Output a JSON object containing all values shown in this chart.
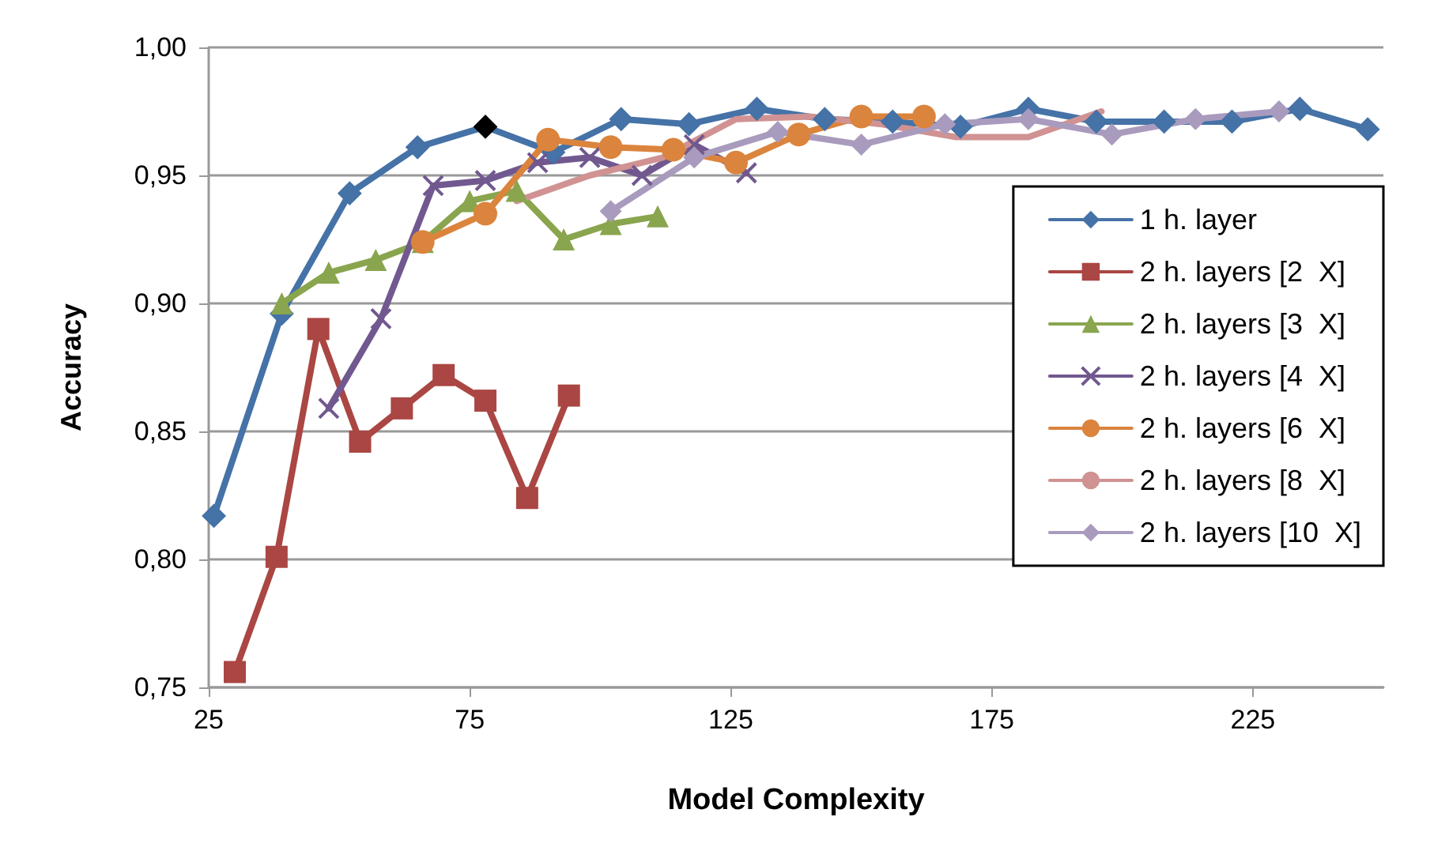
{
  "chart_data": {
    "type": "line",
    "xlabel": "Model Complexity",
    "ylabel": "Accuracy",
    "xlim": [
      25,
      250
    ],
    "xticks": [
      25,
      75,
      125,
      175,
      225
    ],
    "ylim": [
      0.75,
      1.0
    ],
    "yticks": [
      {
        "value": 0.75,
        "label": "0,75"
      },
      {
        "value": 0.8,
        "label": "0,80"
      },
      {
        "value": 0.85,
        "label": "0,85"
      },
      {
        "value": 0.9,
        "label": "0,90"
      },
      {
        "value": 0.95,
        "label": "0,95"
      },
      {
        "value": 1.0,
        "label": "1,00"
      }
    ],
    "grid": "y",
    "legend": "right",
    "series": [
      {
        "name": "1 h. layer",
        "color": "#4572a7",
        "marker": "diamond",
        "colors": [
          "#4572a7",
          "#4572a7",
          "#4572a7",
          "#4572a7",
          "#000000",
          "#4572a7",
          "#4572a7",
          "#4572a7",
          "#4572a7",
          "#4572a7",
          "#4572a7",
          "#4572a7",
          "#4572a7",
          "#4572a7",
          "#4572a7",
          "#4572a7",
          "#4572a7",
          "#4572a7"
        ],
        "x": [
          26,
          39,
          52,
          65,
          78,
          91,
          104,
          117,
          130,
          143,
          156,
          169,
          182,
          195,
          208,
          221,
          234,
          247
        ],
        "values": [
          0.817,
          0.896,
          0.943,
          0.961,
          0.969,
          0.959,
          0.972,
          0.97,
          0.976,
          0.972,
          0.971,
          0.969,
          0.976,
          0.971,
          0.971,
          0.971,
          0.976,
          0.968
        ]
      },
      {
        "name": "2 h. layers [2  X]",
        "color": "#aa4643",
        "marker": "square",
        "x": [
          30,
          38,
          46,
          54,
          62,
          70,
          78,
          86,
          94
        ],
        "values": [
          0.756,
          0.801,
          0.89,
          0.846,
          0.859,
          0.872,
          0.862,
          0.824,
          0.864
        ]
      },
      {
        "name": "2 h. layers [3  X]",
        "color": "#89a54e",
        "marker": "triangle",
        "x": [
          39,
          48,
          57,
          66,
          75,
          84,
          93,
          102,
          111
        ],
        "values": [
          0.9,
          0.912,
          0.917,
          0.924,
          0.94,
          0.944,
          0.925,
          0.931,
          0.934
        ]
      },
      {
        "name": "2 h. layers [4  X]",
        "color": "#71588f",
        "marker": "cross",
        "x": [
          48,
          58,
          68,
          78,
          88,
          98,
          108,
          118,
          128
        ],
        "values": [
          0.859,
          0.894,
          0.946,
          0.948,
          0.955,
          0.957,
          0.95,
          0.962,
          0.951
        ]
      },
      {
        "name": "2 h. layers [6  X]",
        "color": "#db843d",
        "marker": "circle",
        "x": [
          66,
          78,
          90,
          102,
          114,
          126,
          138,
          150,
          162
        ],
        "values": [
          0.924,
          0.935,
          0.964,
          0.961,
          0.96,
          0.955,
          0.966,
          0.973,
          0.973
        ]
      },
      {
        "name": "2 h. layers [8  X]",
        "color": "#d09292",
        "marker": "none",
        "x": [
          84,
          98,
          112,
          126,
          140,
          154,
          168,
          182,
          196
        ],
        "values": [
          0.94,
          0.95,
          0.957,
          0.972,
          0.973,
          0.97,
          0.965,
          0.965,
          0.975
        ]
      },
      {
        "name": "2 h. layers [10  X]",
        "color": "#a99bbd",
        "marker": "diamond",
        "x": [
          102,
          118,
          134,
          150,
          166,
          182,
          198,
          214,
          230
        ],
        "values": [
          0.936,
          0.957,
          0.967,
          0.962,
          0.97,
          0.972,
          0.966,
          0.972,
          0.975
        ]
      }
    ]
  }
}
